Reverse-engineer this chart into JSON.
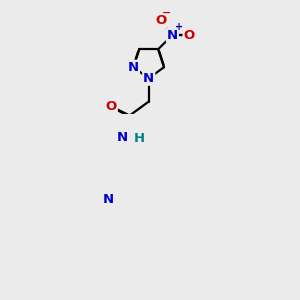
{
  "bg_color": "#ebebeb",
  "bond_color": "#000000",
  "bond_width": 1.6,
  "atom_colors": {
    "N": "#0000cc",
    "O": "#cc0000",
    "H": "#008080",
    "Nplus": "#0000cc",
    "Ominus": "#cc0000"
  },
  "font_size": 9.5,
  "fig_size": [
    3.0,
    3.0
  ],
  "dpi": 100
}
